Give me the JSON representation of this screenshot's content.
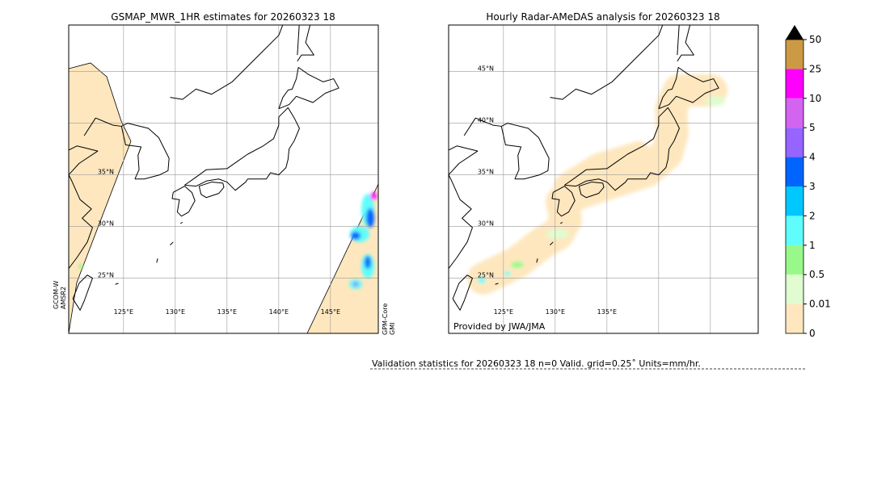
{
  "panels": [
    {
      "title": "GSMAP_MWR_1HR estimates for 20260323 18",
      "lat_labels": [
        "35°N",
        "30°N",
        "25°N"
      ],
      "lon_labels": [
        "125°E",
        "130°E",
        "135°E",
        "140°E",
        "145°E"
      ],
      "left_satellite": [
        "GCOM-W",
        "AMSR2"
      ],
      "right_satellite": [
        "GPM-Core",
        "GMI"
      ]
    },
    {
      "title": "Hourly Radar-AMeDAS analysis for 20260323 18",
      "lat_labels": [
        "45°N",
        "40°N",
        "35°N",
        "30°N",
        "25°N"
      ],
      "lon_labels": [
        "125°E",
        "130°E",
        "135°E"
      ],
      "credit": "Provided by JWA/JMA"
    }
  ],
  "colorbar": {
    "labels": [
      "0",
      "0.01",
      "0.5",
      "1",
      "2",
      "3",
      "4",
      "5",
      "10",
      "25",
      "50"
    ],
    "colors": [
      "#fee7be",
      "#e0fcd0",
      "#98f98a",
      "#5ffdfb",
      "#00c8ff",
      "#0064ff",
      "#9664ff",
      "#d264f0",
      "#ff00ff",
      "#cc9944"
    ]
  },
  "footer": {
    "validation": "Validation statistics for 20260323 18  n=0 Valid. grid=0.25˚ Units=mm/hr."
  }
}
